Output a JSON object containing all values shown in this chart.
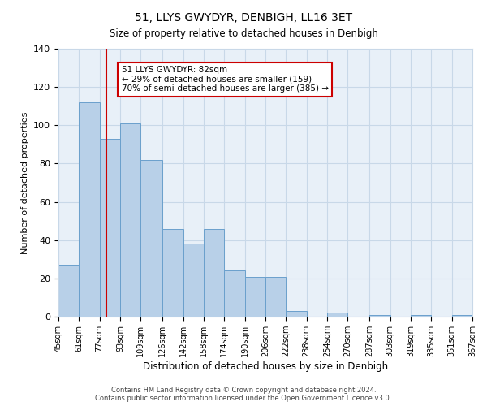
{
  "title": "51, LLYS GWYDYR, DENBIGH, LL16 3ET",
  "subtitle": "Size of property relative to detached houses in Denbigh",
  "xlabel": "Distribution of detached houses by size in Denbigh",
  "ylabel": "Number of detached properties",
  "bin_edges": [
    45,
    61,
    77,
    93,
    109,
    126,
    142,
    158,
    174,
    190,
    206,
    222,
    238,
    254,
    270,
    287,
    303,
    319,
    335,
    351,
    367
  ],
  "bar_heights": [
    27,
    112,
    93,
    101,
    82,
    46,
    38,
    46,
    24,
    21,
    21,
    3,
    0,
    2,
    0,
    1,
    0,
    1,
    0,
    1
  ],
  "bar_color": "#b8d0e8",
  "bar_edge_color": "#6aa0cc",
  "property_size": 82,
  "vline_color": "#cc0000",
  "annotation_title": "51 LLYS GWYDYR: 82sqm",
  "annotation_line1": "← 29% of detached houses are smaller (159)",
  "annotation_line2": "70% of semi-detached houses are larger (385) →",
  "annotation_box_color": "#ffffff",
  "annotation_box_edge": "#cc0000",
  "ylim": [
    0,
    140
  ],
  "yticks": [
    0,
    20,
    40,
    60,
    80,
    100,
    120,
    140
  ],
  "footer_line1": "Contains HM Land Registry data © Crown copyright and database right 2024.",
  "footer_line2": "Contains public sector information licensed under the Open Government Licence v3.0.",
  "grid_color": "#c8d8e8",
  "background_color": "#e8f0f8"
}
